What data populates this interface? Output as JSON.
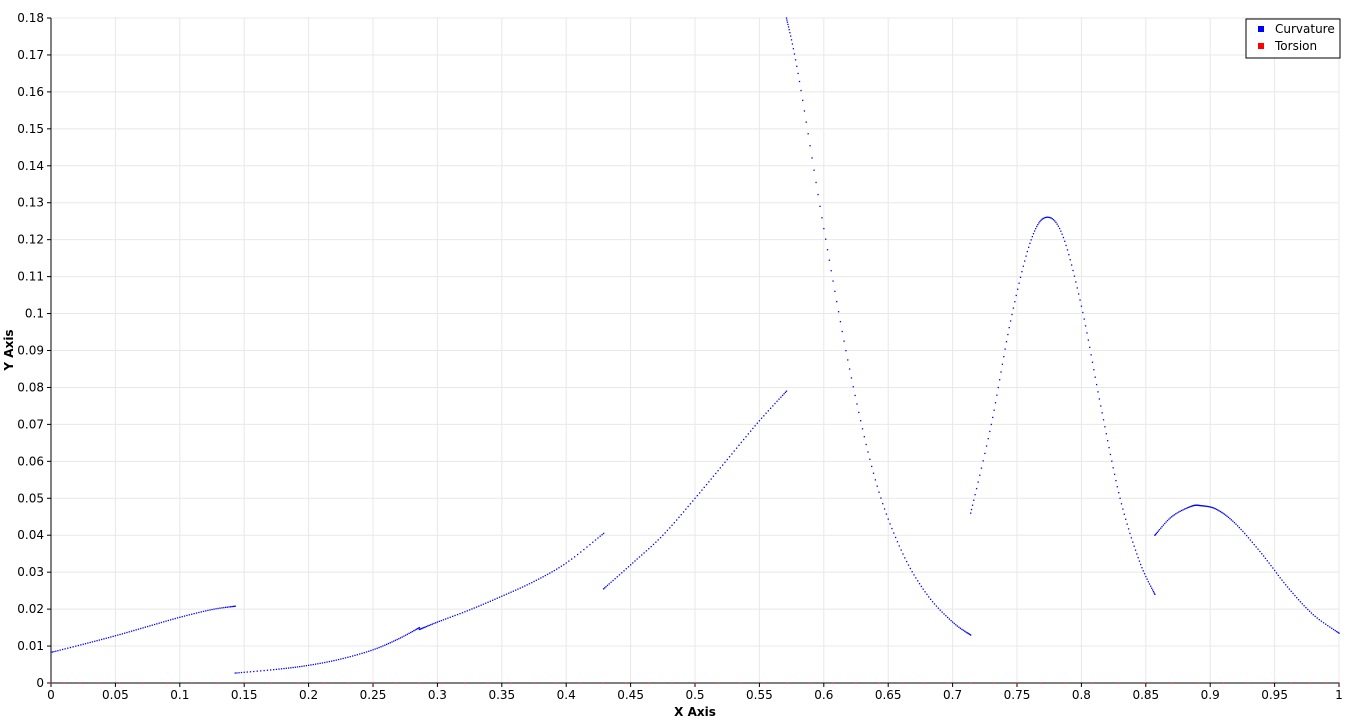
{
  "chart_data": {
    "type": "scatter",
    "xlabel": "X Axis",
    "ylabel": "Y Axis",
    "xlim": [
      0,
      1
    ],
    "ylim": [
      0,
      0.18
    ],
    "x_ticks": [
      "0",
      "0.05",
      "0.1",
      "0.15",
      "0.2",
      "0.25",
      "0.3",
      "0.35",
      "0.4",
      "0.45",
      "0.5",
      "0.55",
      "0.6",
      "0.65",
      "0.7",
      "0.75",
      "0.8",
      "0.85",
      "0.9",
      "0.95",
      "1"
    ],
    "y_ticks": [
      "0",
      "0.01",
      "0.02",
      "0.03",
      "0.04",
      "0.05",
      "0.06",
      "0.07",
      "0.08",
      "0.09",
      "0.1",
      "0.11",
      "0.12",
      "0.13",
      "0.14",
      "0.15",
      "0.16",
      "0.17",
      "0.18"
    ],
    "grid": true,
    "legend_position": "top-right",
    "series": [
      {
        "name": "Curvature",
        "color": "#0000ff",
        "segments": [
          {
            "x": [
              0.0,
              0.025,
              0.05,
              0.075,
              0.1,
              0.125,
              0.143
            ],
            "y": [
              0.0083,
              0.0105,
              0.0128,
              0.0153,
              0.0178,
              0.0199,
              0.0208
            ]
          },
          {
            "x": [
              0.143,
              0.175,
              0.2,
              0.225,
              0.25,
              0.27,
              0.286
            ],
            "y": [
              0.0027,
              0.0037,
              0.0048,
              0.0065,
              0.009,
              0.012,
              0.015
            ]
          },
          {
            "x": [
              0.286,
              0.3,
              0.325,
              0.35,
              0.375,
              0.4,
              0.429
            ],
            "y": [
              0.0145,
              0.0165,
              0.0198,
              0.0235,
              0.0275,
              0.0325,
              0.0405
            ]
          },
          {
            "x": [
              0.429,
              0.45,
              0.475,
              0.5,
              0.525,
              0.55,
              0.571
            ],
            "y": [
              0.0255,
              0.032,
              0.04,
              0.05,
              0.0605,
              0.071,
              0.079
            ]
          },
          {
            "x": [
              0.571,
              0.58,
              0.6,
              0.62,
              0.64,
              0.66,
              0.68,
              0.7,
              0.714
            ],
            "y": [
              0.18,
              0.165,
              0.123,
              0.085,
              0.055,
              0.036,
              0.024,
              0.0165,
              0.013
            ]
          },
          {
            "x": [
              0.714,
              0.73,
              0.745,
              0.76,
              0.772,
              0.785,
              0.8,
              0.815,
              0.83,
              0.845,
              0.857
            ],
            "y": [
              0.046,
              0.07,
              0.098,
              0.119,
              0.126,
              0.1215,
              0.102,
              0.075,
              0.05,
              0.033,
              0.024
            ]
          },
          {
            "x": [
              0.857,
              0.87,
              0.885,
              0.893,
              0.905,
              0.92,
              0.94,
              0.96,
              0.98,
              1.0
            ],
            "y": [
              0.04,
              0.045,
              0.0478,
              0.048,
              0.047,
              0.043,
              0.035,
              0.026,
              0.0185,
              0.0135
            ]
          }
        ]
      },
      {
        "name": "Torsion",
        "color": "#ff0000",
        "segments": [
          {
            "x": [
              0.0,
              0.25,
              0.5,
              0.75,
              1.0
            ],
            "y": [
              0.0,
              0.0,
              0.0,
              0.0,
              0.0
            ]
          }
        ]
      }
    ]
  }
}
